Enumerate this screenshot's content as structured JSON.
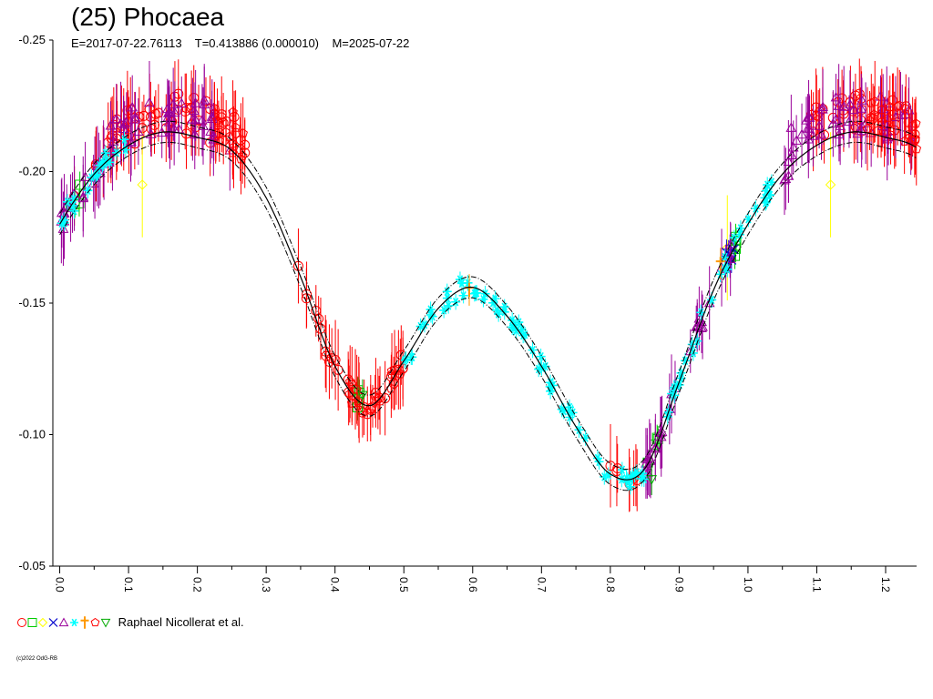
{
  "chart_data": {
    "type": "scatter",
    "title": "(25) Phocaea",
    "subtitle": "E=2017-07-22.76113    T=0.413886 (0.000010)    M=2025-07-22",
    "xlabel": "",
    "ylabel": "",
    "xlim": [
      -0.01,
      1.245
    ],
    "ylim": [
      -0.25,
      -0.05
    ],
    "y_inverted": true,
    "grid": false,
    "x_ticks": [
      "0.0",
      "0.1",
      "0.2",
      "0.3",
      "0.4",
      "0.5",
      "0.6",
      "0.7",
      "0.8",
      "0.9",
      "1.0",
      "1.1",
      "1.2"
    ],
    "y_ticks": [
      "-0.25",
      "-0.20",
      "-0.15",
      "-0.10",
      "-0.05"
    ],
    "model_curve": {
      "phase": [
        0.0,
        0.05,
        0.1,
        0.15,
        0.2,
        0.25,
        0.3,
        0.35,
        0.4,
        0.45,
        0.5,
        0.55,
        0.6,
        0.65,
        0.7,
        0.75,
        0.8,
        0.85,
        0.9,
        0.95,
        1.0
      ],
      "mag": [
        -0.18,
        -0.199,
        -0.21,
        -0.215,
        -0.213,
        -0.208,
        -0.19,
        -0.16,
        -0.126,
        -0.111,
        -0.128,
        -0.148,
        -0.156,
        -0.145,
        -0.126,
        -0.103,
        -0.085,
        -0.087,
        -0.12,
        -0.155,
        -0.18
      ],
      "style": "solid with dash-dot uncertainty envelope",
      "envelope": 0.004
    },
    "series": [
      {
        "symbol": "circle",
        "color": "#ff0000",
        "ranges": [
          [
            0.02,
            0.27,
            "plateau"
          ],
          [
            0.34,
            0.5,
            "curve"
          ],
          [
            0.8,
            0.84,
            "curve"
          ],
          [
            1.09,
            1.245,
            "plateau"
          ]
        ]
      },
      {
        "symbol": "square",
        "color": "#00cc00",
        "ranges": [
          [
            0.01,
            0.03,
            "curve"
          ],
          [
            0.43,
            0.45,
            "curve"
          ],
          [
            0.85,
            0.87,
            "curve"
          ],
          [
            0.96,
            0.99,
            "curve"
          ]
        ]
      },
      {
        "symbol": "diamond",
        "color": "#ffff00",
        "points": [
          [
            0.12,
            -0.195
          ],
          [
            0.97,
            -0.171
          ],
          [
            1.12,
            -0.195
          ]
        ]
      },
      {
        "symbol": "cross",
        "color": "#0000cc",
        "ranges": [
          [
            0.96,
            0.98,
            "curve"
          ]
        ]
      },
      {
        "symbol": "triangle",
        "color": "#990099",
        "ranges": [
          [
            0.0,
            0.25,
            "plateau"
          ],
          [
            0.85,
            0.99,
            "curve"
          ],
          [
            1.05,
            1.245,
            "plateau"
          ]
        ]
      },
      {
        "symbol": "star",
        "color": "#00ffff",
        "ranges": [
          [
            0.0,
            0.1,
            "curve"
          ],
          [
            0.5,
            0.86,
            "curve"
          ],
          [
            0.88,
            1.04,
            "curve"
          ]
        ]
      },
      {
        "symbol": "dagger",
        "color": "#ff9900",
        "points": [
          [
            0.595,
            -0.155
          ],
          [
            0.96,
            -0.165
          ]
        ]
      },
      {
        "symbol": "pentagon",
        "color": "#ff0000",
        "ranges": [
          [
            0.22,
            0.27,
            "plateau"
          ],
          [
            0.42,
            0.5,
            "curve"
          ],
          [
            1.17,
            1.245,
            "plateau"
          ]
        ]
      },
      {
        "symbol": "down-triangle",
        "color": "#00aa00",
        "points": [
          [
            0.44,
            -0.115
          ],
          [
            0.86,
            -0.083
          ]
        ]
      }
    ],
    "legend": {
      "placement": "bottom-left",
      "text": "Raphael Nicollerat et al."
    },
    "copyright": "(c)2022 OdG-RB"
  }
}
